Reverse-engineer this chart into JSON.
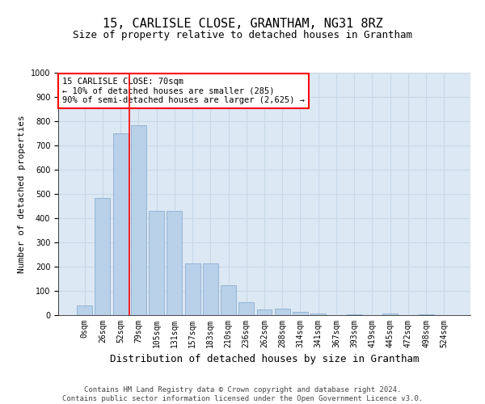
{
  "title": "15, CARLISLE CLOSE, GRANTHAM, NG31 8RZ",
  "subtitle": "Size of property relative to detached houses in Grantham",
  "xlabel": "Distribution of detached houses by size in Grantham",
  "ylabel": "Number of detached properties",
  "footer_line1": "Contains HM Land Registry data © Crown copyright and database right 2024.",
  "footer_line2": "Contains public sector information licensed under the Open Government Licence v3.0.",
  "categories": [
    "0sqm",
    "26sqm",
    "52sqm",
    "79sqm",
    "105sqm",
    "131sqm",
    "157sqm",
    "183sqm",
    "210sqm",
    "236sqm",
    "262sqm",
    "288sqm",
    "314sqm",
    "341sqm",
    "367sqm",
    "393sqm",
    "419sqm",
    "445sqm",
    "472sqm",
    "498sqm",
    "524sqm"
  ],
  "bar_values": [
    40,
    485,
    750,
    785,
    430,
    430,
    215,
    215,
    125,
    52,
    25,
    28,
    12,
    8,
    0,
    5,
    0,
    8,
    0,
    5,
    0
  ],
  "bar_color": "#b8d0e8",
  "bar_edge_color": "#7fa8cc",
  "grid_color": "#c8d8e8",
  "background_color": "#dce8f4",
  "annotation_text_line1": "15 CARLISLE CLOSE: 70sqm",
  "annotation_text_line2": "← 10% of detached houses are smaller (285)",
  "annotation_text_line3": "90% of semi-detached houses are larger (2,625) →",
  "red_line_x": 2.5,
  "ylim": [
    0,
    1000
  ],
  "yticks": [
    0,
    100,
    200,
    300,
    400,
    500,
    600,
    700,
    800,
    900,
    1000
  ],
  "title_fontsize": 11,
  "subtitle_fontsize": 9,
  "ylabel_fontsize": 8,
  "xlabel_fontsize": 9,
  "tick_fontsize": 7,
  "footer_fontsize": 6.5
}
